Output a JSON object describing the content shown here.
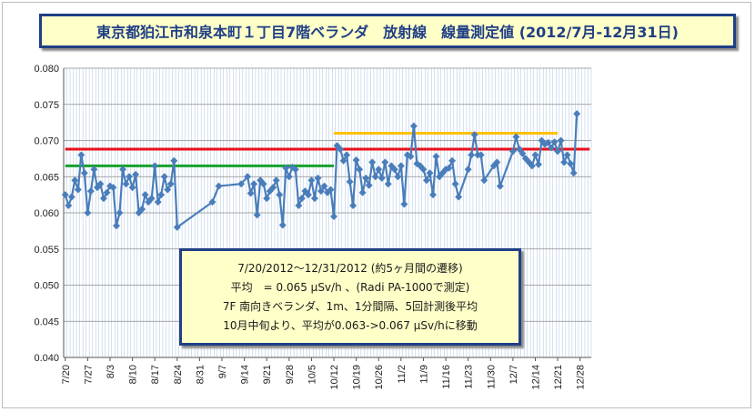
{
  "chart_data": {
    "type": "line",
    "title": "東京都狛江市和泉本町１丁目7階ベランダ　放射線　線量測定値 (2012/7月-12月31日)",
    "ylim": [
      0.04,
      0.08
    ],
    "y_ticks": [
      "0.040",
      "0.045",
      "0.050",
      "0.055",
      "0.060",
      "0.065",
      "0.070",
      "0.075",
      "0.080"
    ],
    "x_tick_labels": [
      "7/20",
      "7/27",
      "8/3",
      "8/10",
      "8/17",
      "8/24",
      "8/31",
      "9/7",
      "9/14",
      "9/21",
      "9/28",
      "10/5",
      "10/12",
      "10/19",
      "10/26",
      "11/2",
      "11/9",
      "11/16",
      "11/23",
      "11/30",
      "12/7",
      "12/14",
      "12/21",
      "12/28"
    ],
    "grid": true,
    "line_color": "#4a7ebb",
    "series": [
      {
        "values": [
          [
            0,
            0.0625
          ],
          [
            1,
            0.061
          ],
          [
            2,
            0.0622
          ],
          [
            3,
            0.0645
          ],
          [
            4,
            0.0632
          ],
          [
            5,
            0.068
          ],
          [
            6,
            0.0655
          ],
          [
            7,
            0.06
          ],
          [
            8,
            0.063
          ],
          [
            9,
            0.066
          ],
          [
            10,
            0.0635
          ],
          [
            11,
            0.064
          ],
          [
            12,
            0.062
          ],
          [
            13,
            0.0628
          ],
          [
            14,
            0.0637
          ],
          [
            15,
            0.0635
          ],
          [
            16,
            0.0582
          ],
          [
            17,
            0.06
          ],
          [
            18,
            0.066
          ],
          [
            19,
            0.064
          ],
          [
            20,
            0.065
          ],
          [
            21,
            0.0635
          ],
          [
            22,
            0.0653
          ],
          [
            23,
            0.06
          ],
          [
            24,
            0.0605
          ],
          [
            25,
            0.0625
          ],
          [
            26,
            0.0615
          ],
          [
            27,
            0.062
          ],
          [
            28,
            0.0665
          ],
          [
            29,
            0.0615
          ],
          [
            30,
            0.0625
          ],
          [
            31,
            0.065
          ],
          [
            32,
            0.0632
          ],
          [
            33,
            0.064
          ],
          [
            34,
            0.0672
          ],
          [
            35,
            0.058
          ],
          [
            46,
            0.0615
          ],
          [
            48,
            0.0637
          ],
          [
            55,
            0.064
          ],
          [
            57,
            0.065
          ],
          [
            58,
            0.0627
          ],
          [
            59,
            0.064
          ],
          [
            60,
            0.0597
          ],
          [
            61,
            0.0645
          ],
          [
            62,
            0.064
          ],
          [
            63,
            0.062
          ],
          [
            64,
            0.063
          ],
          [
            65,
            0.0635
          ],
          [
            66,
            0.0645
          ],
          [
            67,
            0.0625
          ],
          [
            68,
            0.0583
          ],
          [
            69,
            0.0662
          ],
          [
            70,
            0.065
          ],
          [
            71,
            0.0663
          ],
          [
            72,
            0.066
          ],
          [
            73,
            0.061
          ],
          [
            74,
            0.062
          ],
          [
            75,
            0.063
          ],
          [
            76,
            0.0625
          ],
          [
            77,
            0.0645
          ],
          [
            78,
            0.062
          ],
          [
            79,
            0.0648
          ],
          [
            80,
            0.063
          ],
          [
            81,
            0.0637
          ],
          [
            82,
            0.0628
          ],
          [
            83,
            0.0632
          ],
          [
            84,
            0.0595
          ],
          [
            85,
            0.0693
          ],
          [
            86,
            0.0688
          ],
          [
            87,
            0.0672
          ],
          [
            88,
            0.068
          ],
          [
            89,
            0.0643
          ],
          [
            90,
            0.061
          ],
          [
            91,
            0.0673
          ],
          [
            92,
            0.066
          ],
          [
            93,
            0.0628
          ],
          [
            94,
            0.0648
          ],
          [
            95,
            0.0638
          ],
          [
            96,
            0.067
          ],
          [
            97,
            0.065
          ],
          [
            98,
            0.066
          ],
          [
            99,
            0.0648
          ],
          [
            100,
            0.067
          ],
          [
            101,
            0.064
          ],
          [
            102,
            0.0665
          ],
          [
            103,
            0.066
          ],
          [
            104,
            0.065
          ],
          [
            105,
            0.0665
          ],
          [
            106,
            0.0612
          ],
          [
            107,
            0.068
          ],
          [
            108,
            0.0678
          ],
          [
            109,
            0.072
          ],
          [
            110,
            0.0668
          ],
          [
            111,
            0.0665
          ],
          [
            112,
            0.066
          ],
          [
            113,
            0.0645
          ],
          [
            114,
            0.0655
          ],
          [
            115,
            0.0625
          ],
          [
            116,
            0.0678
          ],
          [
            117,
            0.065
          ],
          [
            118,
            0.0655
          ],
          [
            119,
            0.066
          ],
          [
            120,
            0.0662
          ],
          [
            121,
            0.0672
          ],
          [
            122,
            0.064
          ],
          [
            123,
            0.0622
          ],
          [
            126,
            0.066
          ],
          [
            127,
            0.068
          ],
          [
            128,
            0.0708
          ],
          [
            129,
            0.068
          ],
          [
            130,
            0.068
          ],
          [
            131,
            0.0645
          ],
          [
            134,
            0.0665
          ],
          [
            135,
            0.067
          ],
          [
            136,
            0.0637
          ],
          [
            140,
            0.0685
          ],
          [
            141,
            0.0705
          ],
          [
            142,
            0.0688
          ],
          [
            143,
            0.0682
          ],
          [
            144,
            0.0675
          ],
          [
            145,
            0.067
          ],
          [
            146,
            0.0665
          ],
          [
            147,
            0.068
          ],
          [
            148,
            0.0667
          ],
          [
            149,
            0.07
          ],
          [
            150,
            0.0695
          ],
          [
            151,
            0.0697
          ],
          [
            152,
            0.069
          ],
          [
            153,
            0.0698
          ],
          [
            154,
            0.0685
          ],
          [
            155,
            0.07
          ],
          [
            156,
            0.067
          ],
          [
            157,
            0.068
          ],
          [
            158,
            0.0668
          ],
          [
            159,
            0.0655
          ],
          [
            160,
            0.0737
          ]
        ]
      }
    ],
    "reference_lines": [
      {
        "color": "#e8101a",
        "y": 0.0688,
        "x_from": 0,
        "x_to": 164
      },
      {
        "color": "#16a22c",
        "y": 0.0665,
        "x_from": 0,
        "x_to": 84
      },
      {
        "color": "#ffc000",
        "y": 0.071,
        "x_from": 84,
        "x_to": 154
      }
    ],
    "annotation_lines": [
      "7/20/2012～12/31/2012 (約5ヶ月間の遷移)",
      "平均　= 0.065 μSv/h 、(Radi PA-1000で測定)",
      "7F 南向きベランダ、1m、1分間隔、5回計測後平均",
      "10月中旬より、平均が0.063->0.067 μSv/hに移動"
    ]
  }
}
